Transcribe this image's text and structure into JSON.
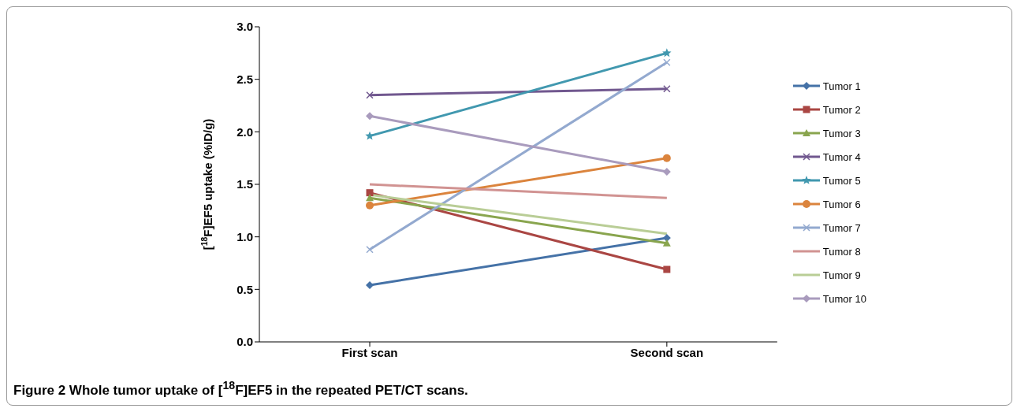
{
  "chart_data": {
    "type": "line",
    "title": "Figure 2 Whole tumor uptake of [$^{18}$F]EF5 in the repeated PET/CT scans.",
    "ylabel": "[$^{18}$F]EF5 uptake (%ID/g)",
    "categories": [
      "First scan",
      "Second scan"
    ],
    "ylim": [
      0,
      3
    ],
    "yticks": [
      {
        "value": 0,
        "label": "0.0"
      },
      {
        "value": 0.5,
        "label": "0.5"
      },
      {
        "value": 1,
        "label": "1.0"
      },
      {
        "value": 1.5,
        "label": "1.5"
      },
      {
        "value": 2,
        "label": "2.0"
      },
      {
        "value": 2.5,
        "label": "2.5"
      },
      {
        "value": 3,
        "label": "3.0"
      }
    ],
    "grid": false,
    "legend": "right",
    "series": [
      {
        "name": "Tumor 1",
        "color": "#4572a7",
        "marker": "diamond",
        "values": [
          0.54,
          0.99
        ]
      },
      {
        "name": "Tumor 2",
        "color": "#aa4643",
        "marker": "square",
        "values": [
          1.42,
          0.69
        ]
      },
      {
        "name": "Tumor 3",
        "color": "#89a54e",
        "marker": "triangle",
        "values": [
          1.37,
          0.94
        ]
      },
      {
        "name": "Tumor 4",
        "color": "#71588f",
        "marker": "cross",
        "values": [
          2.35,
          2.41
        ]
      },
      {
        "name": "Tumor 5",
        "color": "#4198af",
        "marker": "star",
        "values": [
          1.96,
          2.75
        ]
      },
      {
        "name": "Tumor 6",
        "color": "#db843d",
        "marker": "circle",
        "values": [
          1.3,
          1.75
        ]
      },
      {
        "name": "Tumor 7",
        "color": "#93a9cf",
        "marker": "cross",
        "values": [
          0.88,
          2.66
        ]
      },
      {
        "name": "Tumor 8",
        "color": "#d19392",
        "marker": "none",
        "values": [
          1.5,
          1.37
        ]
      },
      {
        "name": "Tumor 9",
        "color": "#b9cd96",
        "marker": "none",
        "values": [
          1.4,
          1.03
        ]
      },
      {
        "name": "Tumor 10",
        "color": "#a99bbd",
        "marker": "diamond",
        "values": [
          2.15,
          1.62
        ]
      }
    ]
  }
}
